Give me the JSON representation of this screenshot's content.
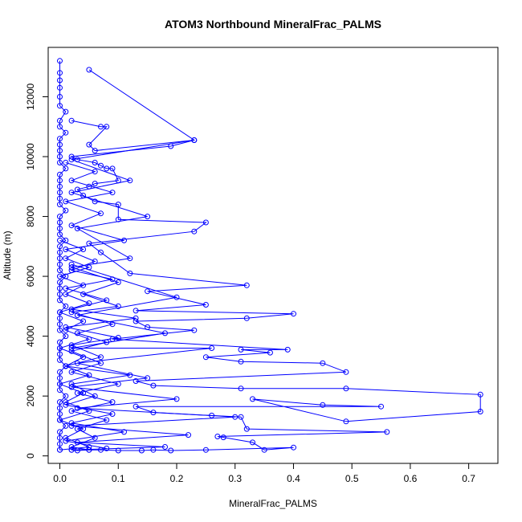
{
  "chart_data": {
    "type": "line",
    "title": "ATOM3 Northbound MineralFrac_PALMS",
    "xlabel": "MineralFrac_PALMS",
    "ylabel": "Altitude (m)",
    "xlim": [
      -0.02,
      0.75
    ],
    "ylim": [
      -250,
      13650
    ],
    "x_ticks": [
      "0.0",
      "0.1",
      "0.2",
      "0.3",
      "0.4",
      "0.5",
      "0.6",
      "0.7"
    ],
    "y_ticks": [
      "0",
      "2000",
      "4000",
      "6000",
      "8000",
      "10000",
      "12000"
    ],
    "x_tick_values": [
      0,
      0.1,
      0.2,
      0.3,
      0.4,
      0.5,
      0.6,
      0.7
    ],
    "y_tick_values": [
      0,
      2000,
      4000,
      6000,
      8000,
      10000,
      12000
    ],
    "series_color": "#0000ff",
    "series": [
      {
        "points": [
          [
            0.0,
            13200
          ],
          [
            0.0,
            12800
          ],
          [
            0.0,
            12550
          ],
          [
            0.0,
            12300
          ],
          [
            0.0,
            12000
          ],
          [
            0.0,
            11700
          ],
          [
            0.01,
            11500
          ],
          [
            0.0,
            11200
          ],
          [
            0.0,
            11000
          ],
          [
            0.01,
            10800
          ],
          [
            0.0,
            10600
          ],
          [
            0.0,
            10400
          ],
          [
            0.0,
            10200
          ],
          [
            0.0,
            10000
          ],
          [
            0.0,
            9800
          ],
          [
            0.01,
            9600
          ],
          [
            0.0,
            9400
          ],
          [
            0.0,
            9200
          ],
          [
            0.0,
            9000
          ],
          [
            0.0,
            8800
          ],
          [
            0.0,
            8600
          ],
          [
            0.0,
            8400
          ],
          [
            0.01,
            8200
          ],
          [
            0.0,
            8000
          ],
          [
            0.0,
            7800
          ],
          [
            0.0,
            7600
          ],
          [
            0.0,
            7400
          ],
          [
            0.01,
            7200
          ],
          [
            0.0,
            7000
          ],
          [
            0.0,
            6800
          ],
          [
            0.0,
            6600
          ],
          [
            0.0,
            6400
          ],
          [
            0.0,
            6200
          ],
          [
            0.01,
            6000
          ],
          [
            0.0,
            5800
          ],
          [
            0.0,
            5600
          ],
          [
            0.0,
            5400
          ],
          [
            0.0,
            5200
          ],
          [
            0.01,
            5000
          ],
          [
            0.0,
            4800
          ],
          [
            0.0,
            4600
          ],
          [
            0.0,
            4400
          ],
          [
            0.0,
            4200
          ],
          [
            0.01,
            4000
          ],
          [
            0.0,
            3800
          ],
          [
            0.0,
            3600
          ],
          [
            0.0,
            3400
          ],
          [
            0.0,
            3200
          ],
          [
            0.01,
            3000
          ],
          [
            0.0,
            2800
          ],
          [
            0.0,
            2600
          ],
          [
            0.0,
            2400
          ],
          [
            0.0,
            2200
          ],
          [
            0.01,
            2000
          ],
          [
            0.0,
            1800
          ],
          [
            0.0,
            1600
          ],
          [
            0.0,
            1400
          ],
          [
            0.0,
            1200
          ],
          [
            0.01,
            1000
          ],
          [
            0.0,
            800
          ],
          [
            0.0,
            600
          ],
          [
            0.0,
            400
          ],
          [
            0.0,
            200
          ]
        ]
      },
      {
        "points": [
          [
            0.02,
            11200
          ],
          [
            0.07,
            11000
          ],
          [
            0.08,
            11000
          ],
          [
            0.05,
            10400
          ],
          [
            0.06,
            10200
          ],
          [
            0.23,
            10550
          ],
          [
            0.19,
            10350
          ],
          [
            0.02,
            10000
          ],
          [
            0.03,
            9900
          ],
          [
            0.06,
            9800
          ],
          [
            0.07,
            9700
          ],
          [
            0.08,
            9600
          ],
          [
            0.09,
            9600
          ],
          [
            0.1,
            9200
          ],
          [
            0.06,
            9100
          ],
          [
            0.05,
            9000
          ],
          [
            0.03,
            8900
          ],
          [
            0.04,
            8700
          ],
          [
            0.06,
            8500
          ],
          [
            0.1,
            8400
          ],
          [
            0.1,
            7900
          ],
          [
            0.25,
            7800
          ],
          [
            0.23,
            7500
          ],
          [
            0.05,
            7100
          ],
          [
            0.07,
            6800
          ],
          [
            0.12,
            6100
          ],
          [
            0.32,
            5700
          ],
          [
            0.15,
            5500
          ],
          [
            0.25,
            5050
          ],
          [
            0.13,
            4850
          ],
          [
            0.4,
            4750
          ],
          [
            0.32,
            4600
          ],
          [
            0.13,
            4500
          ],
          [
            0.15,
            4300
          ],
          [
            0.23,
            4200
          ],
          [
            0.09,
            3900
          ],
          [
            0.39,
            3550
          ],
          [
            0.31,
            3550
          ],
          [
            0.36,
            3450
          ],
          [
            0.25,
            3300
          ],
          [
            0.31,
            3150
          ],
          [
            0.45,
            3100
          ],
          [
            0.49,
            2800
          ],
          [
            0.13,
            2500
          ],
          [
            0.16,
            2350
          ],
          [
            0.31,
            2250
          ],
          [
            0.49,
            2250
          ],
          [
            0.72,
            2050
          ],
          [
            0.72,
            1480
          ],
          [
            0.49,
            1150
          ],
          [
            0.33,
            1900
          ],
          [
            0.45,
            1700
          ],
          [
            0.55,
            1650
          ],
          [
            0.13,
            1650
          ],
          [
            0.16,
            1450
          ],
          [
            0.26,
            1350
          ],
          [
            0.31,
            1300
          ],
          [
            0.32,
            900
          ],
          [
            0.56,
            800
          ],
          [
            0.27,
            650
          ],
          [
            0.28,
            620
          ],
          [
            0.33,
            450
          ],
          [
            0.35,
            200
          ],
          [
            0.4,
            280
          ],
          [
            0.25,
            200
          ],
          [
            0.19,
            180
          ],
          [
            0.16,
            200
          ],
          [
            0.14,
            180
          ],
          [
            0.1,
            180
          ],
          [
            0.07,
            200
          ],
          [
            0.05,
            200
          ],
          [
            0.03,
            180
          ],
          [
            0.02,
            200
          ]
        ]
      },
      {
        "points": [
          [
            0.05,
            12900
          ],
          [
            0.23,
            10550
          ],
          [
            0.02,
            9900
          ],
          [
            0.12,
            9200
          ],
          [
            0.02,
            8800
          ],
          [
            0.15,
            8000
          ],
          [
            0.03,
            7600
          ],
          [
            0.12,
            6600
          ],
          [
            0.02,
            6300
          ],
          [
            0.1,
            5800
          ],
          [
            0.04,
            5400
          ],
          [
            0.1,
            5000
          ],
          [
            0.02,
            4800
          ],
          [
            0.09,
            4400
          ],
          [
            0.03,
            4100
          ],
          [
            0.08,
            3800
          ],
          [
            0.02,
            3500
          ],
          [
            0.07,
            3100
          ],
          [
            0.02,
            2800
          ],
          [
            0.1,
            2400
          ],
          [
            0.03,
            2100
          ],
          [
            0.09,
            1800
          ],
          [
            0.02,
            1500
          ],
          [
            0.08,
            1200
          ],
          [
            0.03,
            900
          ],
          [
            0.06,
            600
          ],
          [
            0.02,
            300
          ],
          [
            0.05,
            200
          ]
        ]
      },
      {
        "points": [
          [
            0.01,
            9800
          ],
          [
            0.06,
            9500
          ],
          [
            0.02,
            9200
          ],
          [
            0.09,
            8800
          ],
          [
            0.01,
            8500
          ],
          [
            0.07,
            8100
          ],
          [
            0.02,
            7700
          ],
          [
            0.11,
            7200
          ],
          [
            0.01,
            6900
          ],
          [
            0.06,
            6500
          ],
          [
            0.02,
            6200
          ],
          [
            0.09,
            5900
          ],
          [
            0.01,
            5600
          ],
          [
            0.08,
            5200
          ],
          [
            0.02,
            4900
          ],
          [
            0.13,
            4600
          ],
          [
            0.01,
            4300
          ],
          [
            0.1,
            3950
          ],
          [
            0.02,
            3700
          ],
          [
            0.07,
            3300
          ],
          [
            0.01,
            3000
          ],
          [
            0.12,
            2700
          ],
          [
            0.02,
            2400
          ],
          [
            0.06,
            2000
          ],
          [
            0.01,
            1700
          ],
          [
            0.09,
            1400
          ],
          [
            0.02,
            1100
          ],
          [
            0.11,
            800
          ],
          [
            0.01,
            500
          ],
          [
            0.08,
            250
          ]
        ]
      },
      {
        "points": [
          [
            0.0,
            7200
          ],
          [
            0.04,
            6900
          ],
          [
            0.01,
            6600
          ],
          [
            0.05,
            6300
          ],
          [
            0.0,
            6000
          ],
          [
            0.04,
            5700
          ],
          [
            0.01,
            5400
          ],
          [
            0.05,
            5100
          ],
          [
            0.0,
            4800
          ],
          [
            0.04,
            4500
          ],
          [
            0.01,
            4200
          ],
          [
            0.05,
            3900
          ],
          [
            0.0,
            3600
          ],
          [
            0.04,
            3300
          ],
          [
            0.01,
            3000
          ],
          [
            0.05,
            2700
          ],
          [
            0.0,
            2400
          ],
          [
            0.04,
            2100
          ],
          [
            0.01,
            1800
          ],
          [
            0.05,
            1500
          ],
          [
            0.0,
            1200
          ],
          [
            0.04,
            900
          ],
          [
            0.01,
            600
          ],
          [
            0.05,
            300
          ],
          [
            0.0,
            200
          ]
        ]
      },
      {
        "points": [
          [
            0.02,
            6400
          ],
          [
            0.2,
            5300
          ],
          [
            0.03,
            4700
          ],
          [
            0.18,
            4100
          ],
          [
            0.02,
            3600
          ],
          [
            0.26,
            3600
          ],
          [
            0.03,
            3100
          ],
          [
            0.15,
            2600
          ],
          [
            0.02,
            2300
          ],
          [
            0.2,
            1900
          ],
          [
            0.03,
            1600
          ],
          [
            0.3,
            1300
          ],
          [
            0.02,
            1000
          ],
          [
            0.22,
            700
          ],
          [
            0.03,
            450
          ],
          [
            0.18,
            300
          ],
          [
            0.02,
            200
          ]
        ]
      }
    ]
  }
}
